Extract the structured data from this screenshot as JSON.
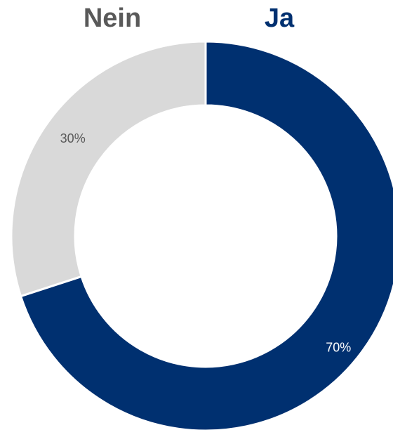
{
  "chart_data": {
    "type": "donut",
    "categories": [
      "Ja",
      "Nein"
    ],
    "values": [
      70,
      30
    ],
    "value_labels": [
      "70%",
      "30%"
    ],
    "colors": [
      "#003070",
      "#d9d9d9"
    ]
  }
}
